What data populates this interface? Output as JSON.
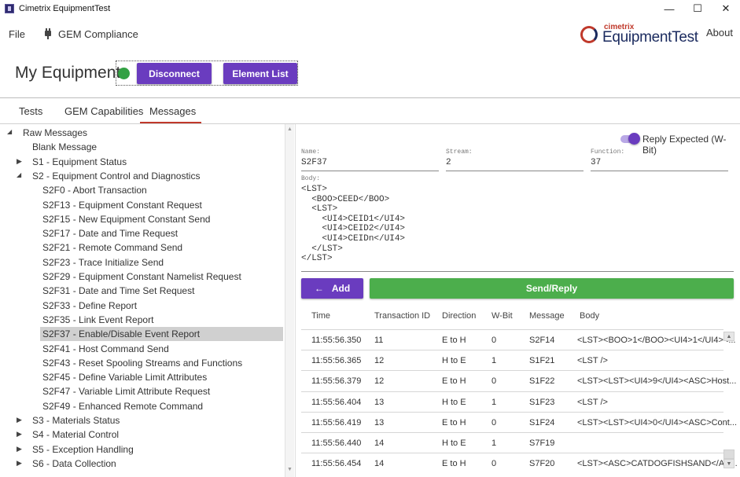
{
  "window": {
    "title": "Cimetrix EquipmentTest",
    "minimize": "—",
    "maximize": "☐",
    "close": "✕"
  },
  "menu": {
    "file": "File",
    "gem": "GEM Compliance",
    "logo_top": "cimetrix",
    "logo_main": "EquipmentTest",
    "about": "About"
  },
  "equipment": {
    "title": "My Equipment",
    "status_color": "#33a144",
    "disconnect": "Disconnect",
    "element_list": "Element List"
  },
  "tabs": [
    "Tests",
    "GEM Capabilities",
    "Messages"
  ],
  "active_tab": "Messages",
  "tree": [
    {
      "label": "Raw Messages",
      "level": 0,
      "chevron": "expanded"
    },
    {
      "label": "Blank Message",
      "level": 1,
      "chevron": "none"
    },
    {
      "label": "S1 - Equipment Status",
      "level": 1,
      "chevron": "collapsed"
    },
    {
      "label": "S2 - Equipment Control and Diagnostics",
      "level": 1,
      "chevron": "expanded"
    },
    {
      "label": "S2F0 - Abort Transaction",
      "level": 2,
      "chevron": "none"
    },
    {
      "label": "S2F13 - Equipment Constant Request",
      "level": 2,
      "chevron": "none"
    },
    {
      "label": "S2F15 - New Equipment Constant Send",
      "level": 2,
      "chevron": "none"
    },
    {
      "label": "S2F17 - Date and Time Request",
      "level": 2,
      "chevron": "none"
    },
    {
      "label": "S2F21 - Remote Command Send",
      "level": 2,
      "chevron": "none"
    },
    {
      "label": "S2F23 - Trace Initialize Send",
      "level": 2,
      "chevron": "none"
    },
    {
      "label": "S2F29 - Equipment Constant Namelist Request",
      "level": 2,
      "chevron": "none"
    },
    {
      "label": "S2F31 - Date and Time Set Request",
      "level": 2,
      "chevron": "none"
    },
    {
      "label": "S2F33 - Define Report",
      "level": 2,
      "chevron": "none"
    },
    {
      "label": "S2F35 - Link Event Report",
      "level": 2,
      "chevron": "none"
    },
    {
      "label": "S2F37 - Enable/Disable Event Report",
      "level": 2,
      "chevron": "none",
      "selected": true
    },
    {
      "label": "S2F41 - Host Command Send",
      "level": 2,
      "chevron": "none"
    },
    {
      "label": "S2F43 - Reset Spooling Streams and Functions",
      "level": 2,
      "chevron": "none"
    },
    {
      "label": "S2F45 - Define Variable Limit Attributes",
      "level": 2,
      "chevron": "none"
    },
    {
      "label": "S2F47 - Variable Limit Attribute Request",
      "level": 2,
      "chevron": "none"
    },
    {
      "label": "S2F49 - Enhanced Remote Command",
      "level": 2,
      "chevron": "none"
    },
    {
      "label": "S3 - Materials Status",
      "level": 1,
      "chevron": "collapsed"
    },
    {
      "label": "S4 - Material Control",
      "level": 1,
      "chevron": "collapsed"
    },
    {
      "label": "S5 - Exception Handling",
      "level": 1,
      "chevron": "collapsed"
    },
    {
      "label": "S6 - Data Collection",
      "level": 1,
      "chevron": "collapsed"
    }
  ],
  "editor": {
    "reply_expected_label": "Reply Expected (W-Bit)",
    "reply_expected": true,
    "name_label": "Name:",
    "name_value": "S2F37",
    "stream_label": "Stream:",
    "stream_value": "2",
    "function_label": "Function:",
    "function_value": "37",
    "body_label": "Body:",
    "body_value": "<LST>\n  <BOO>CEED</BOO>\n  <LST>\n    <UI4>CEID1</UI4>\n    <UI4>CEID2</UI4>\n    <UI4>CEIDn</UI4>\n  </LST>\n</LST>",
    "add_label": "Add",
    "send_label": "Send/Reply"
  },
  "log_table": {
    "columns": [
      "Time",
      "Transaction ID",
      "Direction",
      "W-Bit",
      "Message",
      "Body"
    ],
    "rows": [
      [
        "11:55:56.350",
        "11",
        "E to H",
        "0",
        "S2F14",
        "<LST><BOO>1</BOO><UI4>1</UI4><..."
      ],
      [
        "11:55:56.365",
        "12",
        "H to E",
        "1",
        "S1F21",
        "<LST />"
      ],
      [
        "11:55:56.379",
        "12",
        "E to H",
        "0",
        "S1F22",
        "<LST><LST><UI4>9</UI4><ASC>Host..."
      ],
      [
        "11:55:56.404",
        "13",
        "H to E",
        "1",
        "S1F23",
        "<LST />"
      ],
      [
        "11:55:56.419",
        "13",
        "E to H",
        "0",
        "S1F24",
        "<LST><LST><UI4>0</UI4><ASC>Cont..."
      ],
      [
        "11:55:56.440",
        "14",
        "H to E",
        "1",
        "S7F19",
        ""
      ],
      [
        "11:55:56.454",
        "14",
        "E to H",
        "0",
        "S7F20",
        "<LST><ASC>CATDOGFISHSAND</AS..."
      ]
    ]
  }
}
